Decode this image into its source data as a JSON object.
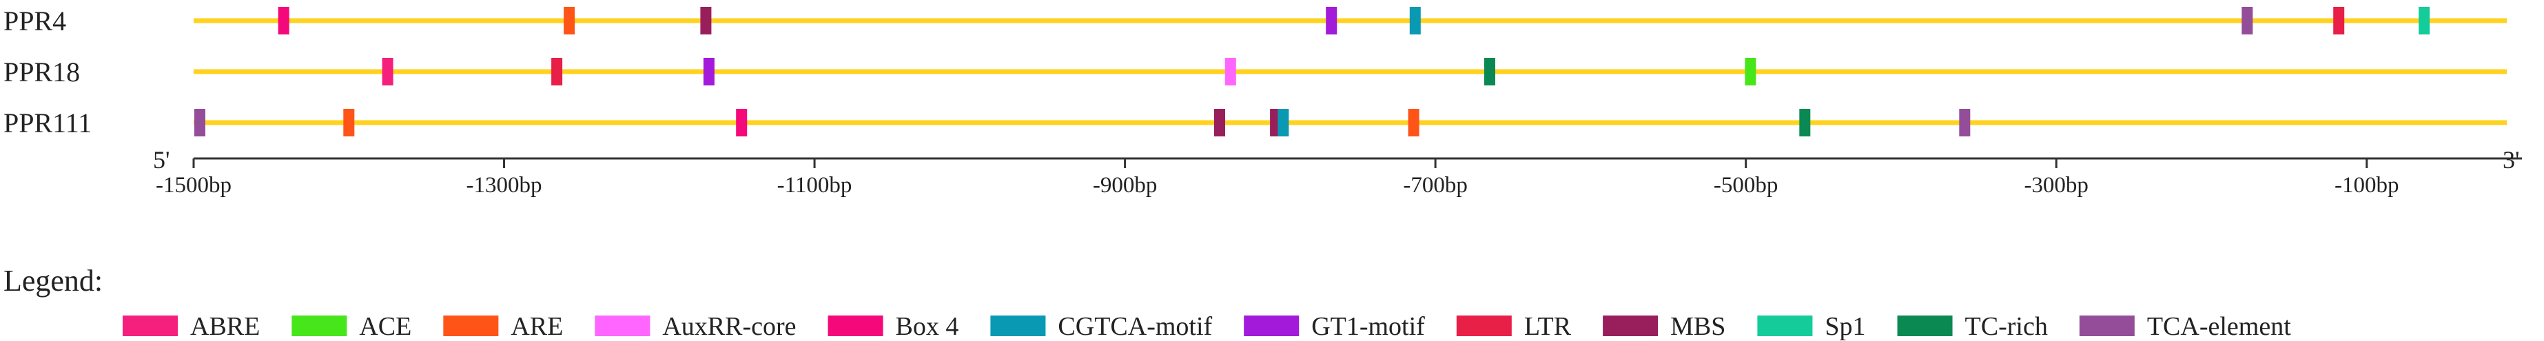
{
  "genes": [
    {
      "name": "PPR4",
      "motifs": [
        {
          "type": "Box 4",
          "pos": -1442
        },
        {
          "type": "ARE",
          "pos": -1258
        },
        {
          "type": "MBS",
          "pos": -1170
        },
        {
          "type": "GT1-motif",
          "pos": -767
        },
        {
          "type": "CGTCA-motif",
          "pos": -713
        },
        {
          "type": "TCA-element",
          "pos": -177
        },
        {
          "type": "LTR",
          "pos": -118
        },
        {
          "type": "Sp1",
          "pos": -63
        }
      ]
    },
    {
      "name": "PPR18",
      "motifs": [
        {
          "type": "ABRE",
          "pos": -1375
        },
        {
          "type": "LTR",
          "pos": -1266
        },
        {
          "type": "GT1-motif",
          "pos": -1168
        },
        {
          "type": "AuxRR-core",
          "pos": -832
        },
        {
          "type": "TC-rich",
          "pos": -665
        },
        {
          "type": "ACE",
          "pos": -497
        }
      ]
    },
    {
      "name": "PPR111",
      "motifs": [
        {
          "type": "TCA-element",
          "pos": -1496
        },
        {
          "type": "ARE",
          "pos": -1400
        },
        {
          "type": "Box 4",
          "pos": -1147
        },
        {
          "type": "MBS",
          "pos": -839
        },
        {
          "type": "MBS",
          "pos": -803
        },
        {
          "type": "CGTCA-motif",
          "pos": -798
        },
        {
          "type": "ARE",
          "pos": -714
        },
        {
          "type": "TC-rich",
          "pos": -462
        },
        {
          "type": "TCA-element",
          "pos": -359
        }
      ]
    }
  ],
  "axis": {
    "min": -1500,
    "max": 0,
    "five_prime": "5'",
    "three_prime": "3'",
    "ticks": [
      {
        "value": -1500,
        "label": "-1500bp"
      },
      {
        "value": -1300,
        "label": "-1300bp"
      },
      {
        "value": -1100,
        "label": "-1100bp"
      },
      {
        "value": -900,
        "label": "-900bp"
      },
      {
        "value": -700,
        "label": "-700bp"
      },
      {
        "value": -500,
        "label": "-500bp"
      },
      {
        "value": -300,
        "label": "-300bp"
      },
      {
        "value": -100,
        "label": "-100bp"
      }
    ]
  },
  "legend": {
    "title": "Legend:",
    "items": [
      {
        "name": "ABRE",
        "color": "#F51F7D"
      },
      {
        "name": "ACE",
        "color": "#47E61A"
      },
      {
        "name": "ARE",
        "color": "#FF5418"
      },
      {
        "name": "AuxRR-core",
        "color": "#FF66FF"
      },
      {
        "name": "Box 4",
        "color": "#F5087A"
      },
      {
        "name": "CGTCA-motif",
        "color": "#0A99B3"
      },
      {
        "name": "GT1-motif",
        "color": "#A31ADB"
      },
      {
        "name": "LTR",
        "color": "#E81F47"
      },
      {
        "name": "MBS",
        "color": "#991F5C"
      },
      {
        "name": "Sp1",
        "color": "#14CC99"
      },
      {
        "name": "TC-rich",
        "color": "#0A8A52"
      },
      {
        "name": "TCA-element",
        "color": "#944D99"
      }
    ]
  },
  "line_color": "#FFD21F",
  "axis_color": "#333333"
}
